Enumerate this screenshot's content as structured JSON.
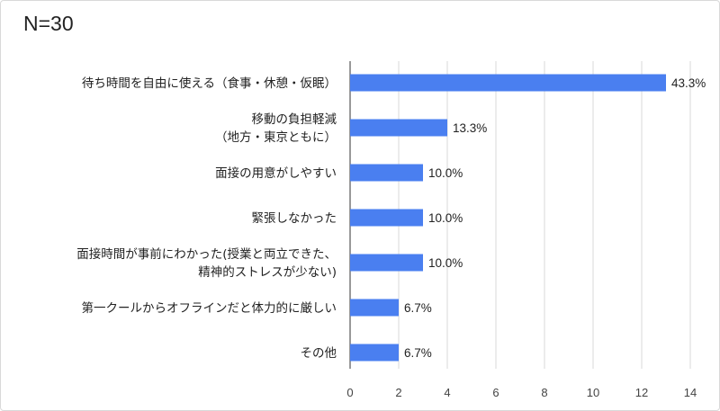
{
  "title": "N=30",
  "colors": {
    "bar": "#4a7ff0",
    "grid": "#d9d9d9",
    "axis": "#333333"
  },
  "chart_data": {
    "type": "bar",
    "orientation": "horizontal",
    "categories": [
      [
        "待ち時間を自由に使える（食事・休憩・仮眠）"
      ],
      [
        "移動の負担軽減",
        "（地方・東京ともに）"
      ],
      [
        "面接の用意がしやすい"
      ],
      [
        "緊張しなかった"
      ],
      [
        "面接時間が事前にわかった(授業と両立できた、",
        "精神的ストレスが少ない)"
      ],
      [
        "第一クールからオフラインだと体力的に厳しい"
      ],
      [
        "その他"
      ]
    ],
    "values": [
      13,
      4,
      3,
      3,
      3,
      2,
      2
    ],
    "data_labels": [
      "43.3%",
      "13.3%",
      "10.0%",
      "10.0%",
      "10.0%",
      "6.7%",
      "6.7%"
    ],
    "xlim": [
      0,
      14
    ],
    "xticks": [
      0,
      2,
      4,
      6,
      8,
      10,
      12,
      14
    ],
    "grid": true
  }
}
